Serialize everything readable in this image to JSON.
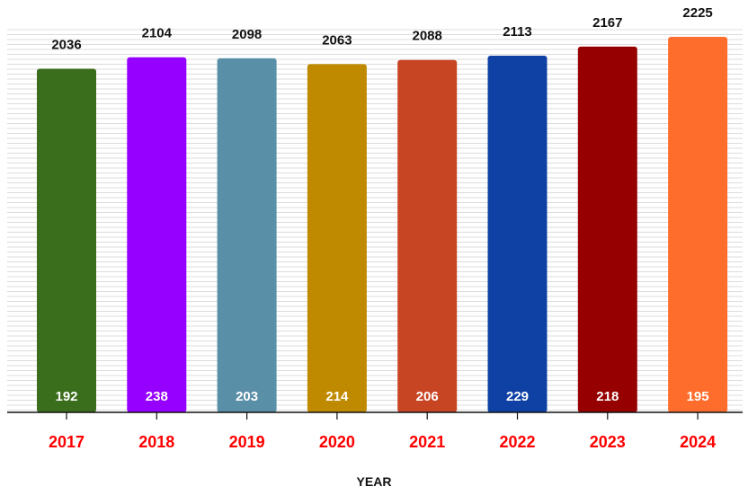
{
  "chart_data": {
    "type": "bar",
    "title": "",
    "xlabel": "YEAR",
    "ylabel": "",
    "categories": [
      "2017",
      "2018",
      "2019",
      "2020",
      "2021",
      "2022",
      "2023",
      "2024"
    ],
    "values": [
      2036,
      2104,
      2098,
      2063,
      2088,
      2113,
      2167,
      2225
    ],
    "inner_values": [
      192,
      238,
      203,
      214,
      206,
      229,
      218,
      195
    ],
    "colors": [
      "#3b6e1c",
      "#9600ff",
      "#5a8fa8",
      "#c08a00",
      "#c84524",
      "#0f41a5",
      "#960000",
      "#ff6d2d"
    ],
    "category_label_color": "#ff0000",
    "ylim": [
      0,
      2225
    ],
    "grid": true,
    "legend": "none"
  }
}
